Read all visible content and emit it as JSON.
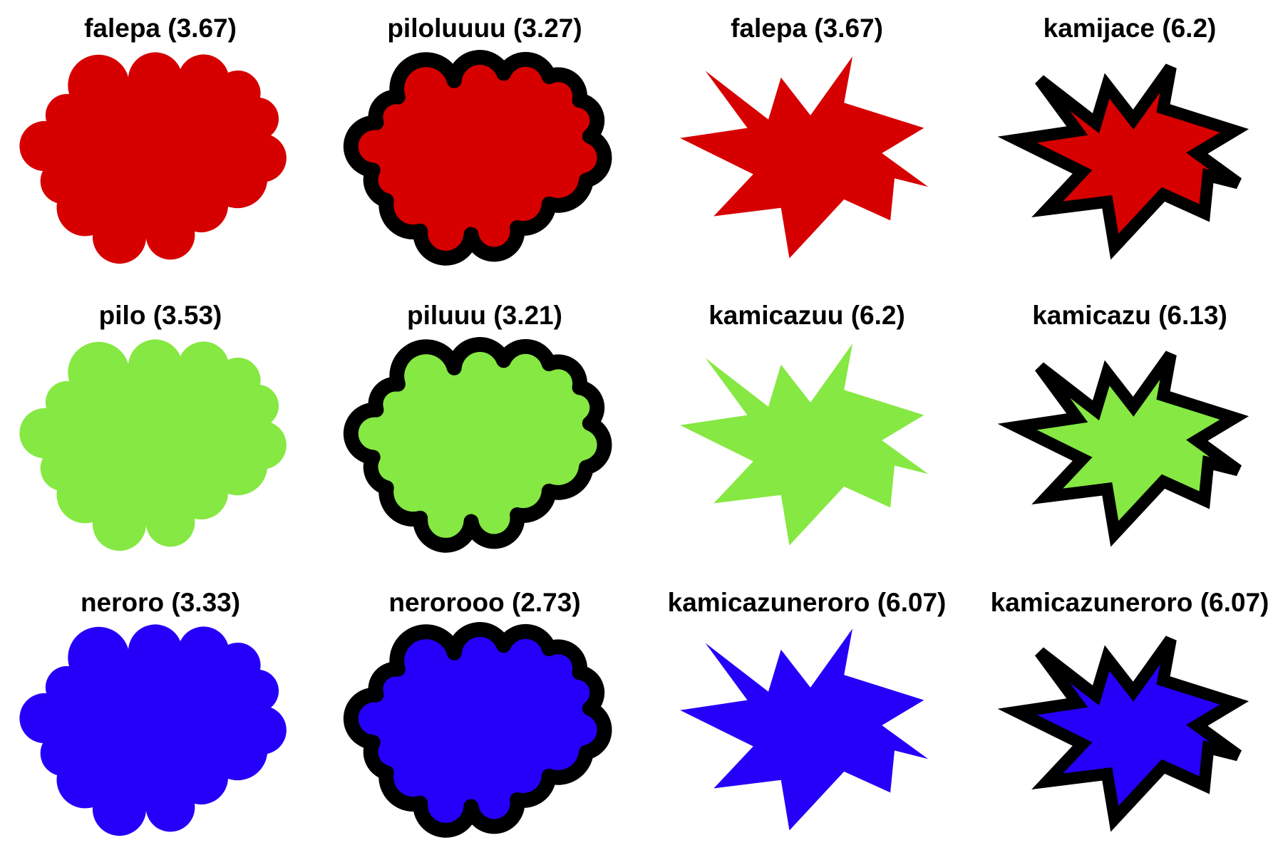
{
  "colors": {
    "red": "#d60000",
    "green": "#86e842",
    "blue": "#2500f8",
    "outline": "#000000",
    "background": "#ffffff"
  },
  "cells": [
    {
      "label": "falepa (3.67)",
      "shape": "cloud",
      "outlined": false,
      "fill": "red"
    },
    {
      "label": "piloluuuu (3.27)",
      "shape": "cloud",
      "outlined": true,
      "fill": "red"
    },
    {
      "label": "falepa (3.67)",
      "shape": "starburst",
      "outlined": false,
      "fill": "red"
    },
    {
      "label": "kamijace (6.2)",
      "shape": "starburst",
      "outlined": true,
      "fill": "red"
    },
    {
      "label": "pilo (3.53)",
      "shape": "cloud",
      "outlined": false,
      "fill": "green"
    },
    {
      "label": "piluuu (3.21)",
      "shape": "cloud",
      "outlined": true,
      "fill": "green"
    },
    {
      "label": "kamicazuu (6.2)",
      "shape": "starburst",
      "outlined": false,
      "fill": "green"
    },
    {
      "label": "kamicazu (6.13)",
      "shape": "starburst",
      "outlined": true,
      "fill": "green"
    },
    {
      "label": "neroro (3.33)",
      "shape": "cloud",
      "outlined": false,
      "fill": "blue"
    },
    {
      "label": "nerorooo (2.73)",
      "shape": "cloud",
      "outlined": true,
      "fill": "blue"
    },
    {
      "label": "kamicazuneroro (6.07)",
      "shape": "starburst",
      "outlined": false,
      "fill": "blue"
    },
    {
      "label": "kamicazuneroro (6.07)",
      "shape": "starburst",
      "outlined": true,
      "fill": "blue"
    }
  ]
}
